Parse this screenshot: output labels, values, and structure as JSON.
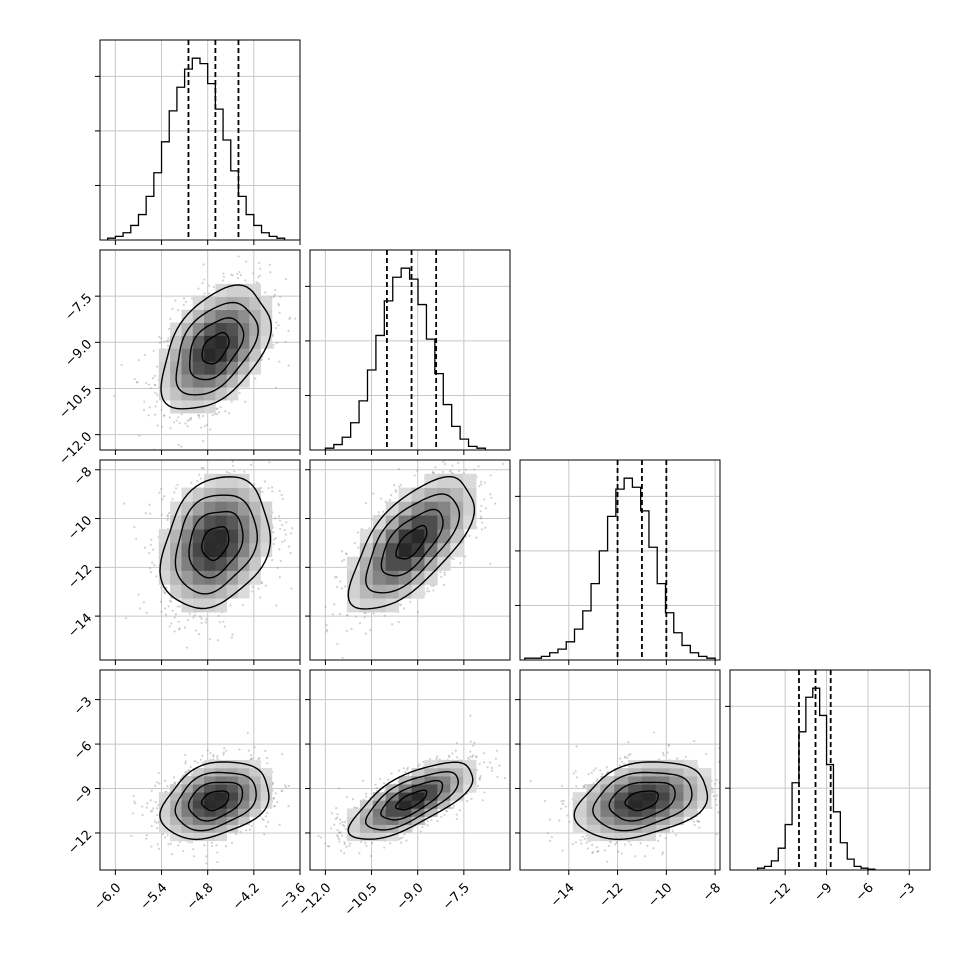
{
  "chart_data": {
    "type": "corner",
    "grid": true,
    "quantiles": [
      0.16,
      0.5,
      0.84
    ],
    "parameters": [
      {
        "hist": {
          "xlim": [
            -6.2,
            -3.6
          ],
          "values": [
            0.01,
            0.02,
            0.04,
            0.08,
            0.14,
            0.24,
            0.37,
            0.54,
            0.71,
            0.84,
            0.94,
            1.0,
            0.97,
            0.86,
            0.72,
            0.55,
            0.38,
            0.24,
            0.14,
            0.08,
            0.04,
            0.02,
            0.01
          ],
          "bin_range": [
            -6.1,
            -3.8
          ],
          "quantile_values": [
            -5.05,
            -4.7,
            -4.4
          ],
          "yticks": [
            0.3,
            0.6,
            0.9
          ]
        },
        "xticks": [
          "−6.0",
          "−5.4",
          "−4.8",
          "−4.2",
          "−3.6"
        ],
        "xtick_values": [
          -6.0,
          -5.4,
          -4.8,
          -4.2,
          -3.6
        ]
      },
      {
        "hist": {
          "xlim": [
            -12.5,
            -6.0
          ],
          "values": [
            0.01,
            0.03,
            0.07,
            0.15,
            0.27,
            0.44,
            0.63,
            0.82,
            0.95,
            1.0,
            0.94,
            0.8,
            0.61,
            0.42,
            0.25,
            0.13,
            0.06,
            0.02,
            0.01
          ],
          "bin_range": [
            -12.0,
            -6.8
          ],
          "quantile_values": [
            -10.0,
            -9.2,
            -8.4
          ],
          "yticks": [
            0.3,
            0.6,
            0.9
          ]
        },
        "xticks": [
          "−12.0",
          "−10.5",
          "−9.0",
          "−7.5"
        ],
        "xtick_values": [
          -12.0,
          -10.5,
          -9.0,
          -7.5
        ],
        "yticks": [
          "−7.5",
          "−9.0",
          "−10.5",
          "−12.0"
        ],
        "ytick_values": [
          -7.5,
          -9.0,
          -10.5,
          -12.0
        ],
        "ylim": [
          -12.5,
          -6.0
        ]
      },
      {
        "hist": {
          "xlim": [
            -16.0,
            -7.8
          ],
          "values": [
            0.01,
            0.01,
            0.02,
            0.04,
            0.06,
            0.1,
            0.17,
            0.27,
            0.42,
            0.6,
            0.79,
            0.94,
            1.0,
            0.95,
            0.82,
            0.62,
            0.42,
            0.26,
            0.15,
            0.08,
            0.04,
            0.02,
            0.01
          ],
          "bin_range": [
            -15.8,
            -8.0
          ],
          "quantile_values": [
            -12.0,
            -11.0,
            -10.0
          ],
          "yticks": [
            0.3,
            0.6,
            0.9
          ]
        },
        "xticks": [
          "−14",
          "−12",
          "−10",
          "−8"
        ],
        "xtick_values": [
          -14,
          -12,
          -10,
          -8
        ],
        "yticks": [
          "−8",
          "−10",
          "−12",
          "−14"
        ],
        "ytick_values": [
          -8,
          -10,
          -12,
          -14
        ],
        "ylim": [
          -15.8,
          -7.6
        ]
      },
      {
        "hist": {
          "xlim": [
            -16.0,
            -1.5
          ],
          "values": [
            0.01,
            0.02,
            0.05,
            0.12,
            0.25,
            0.48,
            0.76,
            0.95,
            1.0,
            0.85,
            0.58,
            0.32,
            0.15,
            0.06,
            0.02,
            0.01,
            0.005
          ],
          "bin_range": [
            -14.0,
            -5.5
          ],
          "quantile_values": [
            -11.0,
            -9.8,
            -8.7
          ],
          "yticks": [
            0.45,
            0.9
          ]
        },
        "xticks": [
          "−12",
          "−9",
          "−6",
          "−3"
        ],
        "xtick_values": [
          -12,
          -9,
          -6,
          -3
        ],
        "yticks": [
          "−3",
          "−6",
          "−9",
          "−12"
        ],
        "ytick_values": [
          -3,
          -6,
          -9,
          -12
        ],
        "ylim": [
          -14.5,
          -1.0
        ]
      }
    ],
    "pairs": [
      {
        "row": 1,
        "col": 0,
        "mean": [
          -4.7,
          -9.2
        ],
        "sd": [
          0.35,
          1.0
        ],
        "rho": 0.45
      },
      {
        "row": 2,
        "col": 0,
        "mean": [
          -4.7,
          -11.0
        ],
        "sd": [
          0.35,
          1.35
        ],
        "rho": 0.25
      },
      {
        "row": 2,
        "col": 1,
        "mean": [
          -9.2,
          -11.0
        ],
        "sd": [
          1.0,
          1.35
        ],
        "rho": 0.65
      },
      {
        "row": 3,
        "col": 0,
        "mean": [
          -4.7,
          -9.8
        ],
        "sd": [
          0.35,
          1.3
        ],
        "rho": 0.3
      },
      {
        "row": 3,
        "col": 1,
        "mean": [
          -9.2,
          -9.8
        ],
        "sd": [
          1.0,
          1.3
        ],
        "rho": 0.7
      },
      {
        "row": 3,
        "col": 2,
        "mean": [
          -11.0,
          -9.8
        ],
        "sd": [
          1.35,
          1.3
        ],
        "rho": 0.3
      }
    ]
  }
}
